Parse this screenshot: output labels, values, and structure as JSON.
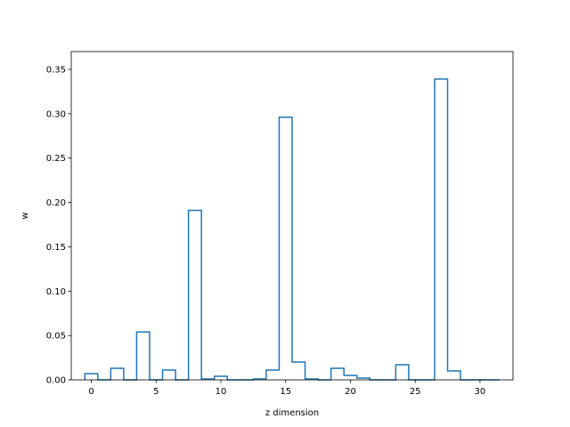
{
  "chart_data": {
    "type": "bar",
    "style": "step-outline",
    "xlabel": "z dimension",
    "ylabel": "w",
    "xlim": [
      -1.55,
      32.55
    ],
    "ylim": [
      0,
      0.37
    ],
    "xticks": [
      0,
      5,
      10,
      15,
      20,
      25,
      30
    ],
    "yticks": [
      0.0,
      0.05,
      0.1,
      0.15,
      0.2,
      0.25,
      0.3,
      0.35
    ],
    "ytick_labels": [
      "0.00",
      "0.05",
      "0.10",
      "0.15",
      "0.20",
      "0.25",
      "0.30",
      "0.35"
    ],
    "x": [
      0,
      1,
      2,
      3,
      4,
      5,
      6,
      7,
      8,
      9,
      10,
      11,
      12,
      13,
      14,
      15,
      16,
      17,
      18,
      19,
      20,
      21,
      22,
      23,
      24,
      25,
      26,
      27,
      28,
      29,
      30,
      31
    ],
    "values": [
      0.007,
      0.0,
      0.013,
      0.0,
      0.054,
      0.0,
      0.011,
      0.0,
      0.191,
      0.001,
      0.004,
      0.0,
      0.0,
      0.001,
      0.011,
      0.296,
      0.02,
      0.001,
      0.0,
      0.013,
      0.005,
      0.002,
      0.0,
      0.0,
      0.017,
      0.0,
      0.0,
      0.339,
      0.01,
      0.0,
      0.0,
      0.0
    ],
    "line_color": "#1f77b4",
    "grid": false,
    "legend": "none"
  }
}
